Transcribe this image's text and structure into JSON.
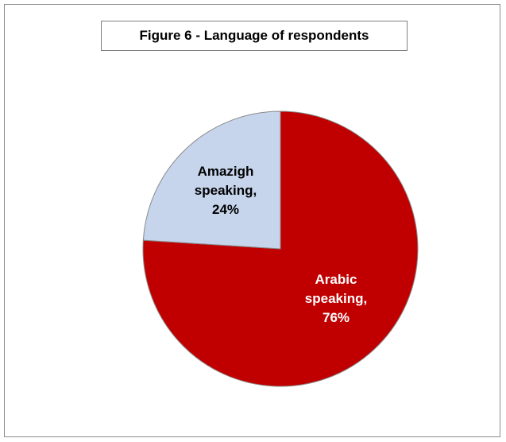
{
  "chart_data": {
    "type": "pie",
    "title": "Figure 6 - Language of respondents",
    "slices": [
      {
        "label": "Arabic speaking",
        "value": 76,
        "display": "76%",
        "color": "#c00000",
        "label_color": "#ffffff"
      },
      {
        "label": "Amazigh speaking",
        "value": 24,
        "display": "24%",
        "color": "#c6d5ec",
        "label_color": "#000000"
      }
    ],
    "start": "12 o'clock",
    "direction": "clockwise",
    "legend": "none"
  }
}
